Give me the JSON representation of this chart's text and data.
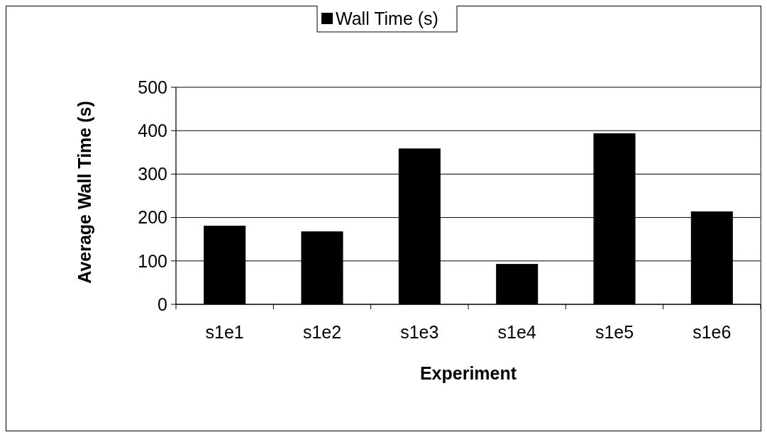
{
  "chart_data": {
    "type": "bar",
    "xlabel": "Experiment",
    "ylabel": "Average Wall Time (s)",
    "categories": [
      "s1e1",
      "s1e2",
      "s1e3",
      "s1e4",
      "s1e5",
      "s1e6"
    ],
    "series": [
      {
        "name": "Wall Time (s)",
        "color": "#000000",
        "values": [
          181,
          168,
          359,
          93,
          394,
          214
        ]
      }
    ],
    "ylim": [
      0,
      500
    ],
    "yticks": [
      0,
      100,
      200,
      300,
      400,
      500
    ],
    "grid": "y",
    "legend": "top"
  }
}
